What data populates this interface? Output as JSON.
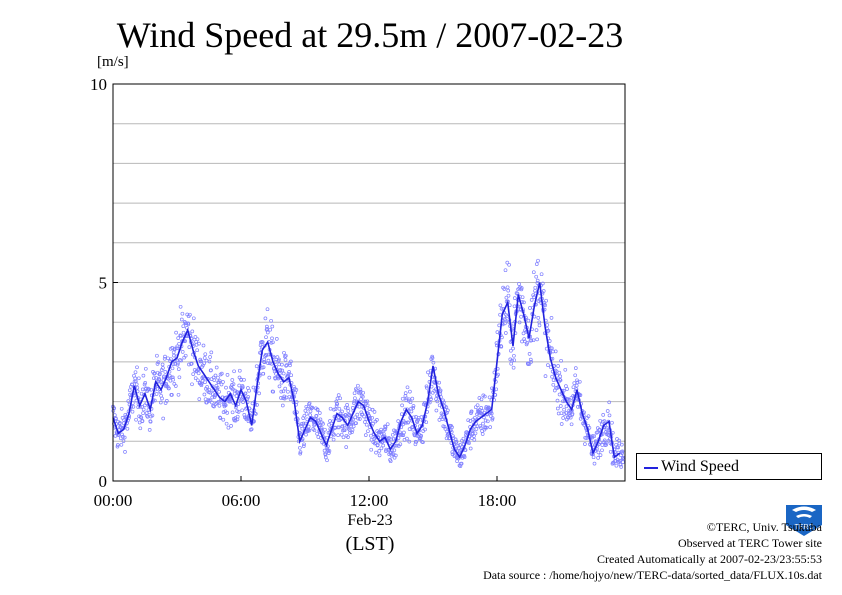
{
  "chart_data": {
    "type": "scatter",
    "title": "Wind Speed at 29.5m / 2007-02-23",
    "ylabel": "[m/s]",
    "xlabel": "(LST)",
    "x_date_label": "Feb-23",
    "ylim": [
      0,
      10
    ],
    "xlim": [
      "00:00",
      "24:00"
    ],
    "yticks": [
      0,
      5,
      10
    ],
    "xticks": [
      "00:00",
      "06:00",
      "12:00",
      "18:00"
    ],
    "grid": true,
    "legend_position": "right",
    "series": [
      {
        "name": "Wind Speed",
        "color": "#2222dd",
        "raw_point_color": "#8080ff",
        "x_hours": [
          0.0,
          0.25,
          0.5,
          0.75,
          1.0,
          1.25,
          1.5,
          1.75,
          2.0,
          2.25,
          2.5,
          2.75,
          3.0,
          3.25,
          3.5,
          3.75,
          4.0,
          4.25,
          4.5,
          4.75,
          5.0,
          5.25,
          5.5,
          5.75,
          6.0,
          6.25,
          6.5,
          6.75,
          7.0,
          7.25,
          7.5,
          7.75,
          8.0,
          8.25,
          8.5,
          8.75,
          9.0,
          9.25,
          9.5,
          9.75,
          10.0,
          10.25,
          10.5,
          10.75,
          11.0,
          11.25,
          11.5,
          11.75,
          12.0,
          12.25,
          12.5,
          12.75,
          13.0,
          13.25,
          13.5,
          13.75,
          14.0,
          14.25,
          14.5,
          14.75,
          15.0,
          15.25,
          15.5,
          15.75,
          16.0,
          16.25,
          16.5,
          16.75,
          17.0,
          17.25,
          17.5,
          17.75,
          18.0,
          18.25,
          18.5,
          18.75,
          19.0,
          19.25,
          19.5,
          19.75,
          20.0,
          20.25,
          20.5,
          20.75,
          21.0,
          21.25,
          21.5,
          21.75,
          22.0,
          22.25,
          22.5,
          22.75,
          23.0,
          23.25,
          23.5,
          23.75
        ],
        "values": [
          1.6,
          1.2,
          1.3,
          1.7,
          2.4,
          1.9,
          2.2,
          1.8,
          2.5,
          2.3,
          2.6,
          3.0,
          3.1,
          3.5,
          3.8,
          3.3,
          2.9,
          2.7,
          2.5,
          2.3,
          2.1,
          2.0,
          2.2,
          1.9,
          2.3,
          2.0,
          1.4,
          2.4,
          3.3,
          3.5,
          3.0,
          2.7,
          2.5,
          2.6,
          2.0,
          1.0,
          1.3,
          1.6,
          1.5,
          1.2,
          0.9,
          1.3,
          1.7,
          1.6,
          1.4,
          1.7,
          2.0,
          1.9,
          1.5,
          1.2,
          1.0,
          1.1,
          0.8,
          1.0,
          1.5,
          1.8,
          1.6,
          1.2,
          1.4,
          2.0,
          2.9,
          2.2,
          1.8,
          1.3,
          0.8,
          0.6,
          0.9,
          1.3,
          1.5,
          1.6,
          1.7,
          1.8,
          3.0,
          4.2,
          4.5,
          3.4,
          4.7,
          4.2,
          3.6,
          4.4,
          5.0,
          3.9,
          3.1,
          2.6,
          2.3,
          2.0,
          1.8,
          2.3,
          1.7,
          1.3,
          0.7,
          1.0,
          1.4,
          1.5,
          0.6,
          0.7
        ]
      }
    ]
  },
  "footer": {
    "copyright": "©TERC, Univ. Tsukuba",
    "observed": "Observed at TERC Tower site",
    "created": "Created Automatically at 2007-02-23/23:55:53",
    "source": "Data source : /home/hojyo/new/TERC-data/sorted_data/FLUX.10s.dat"
  },
  "logo": {
    "text": "TERC",
    "color": "#1a66c4"
  }
}
